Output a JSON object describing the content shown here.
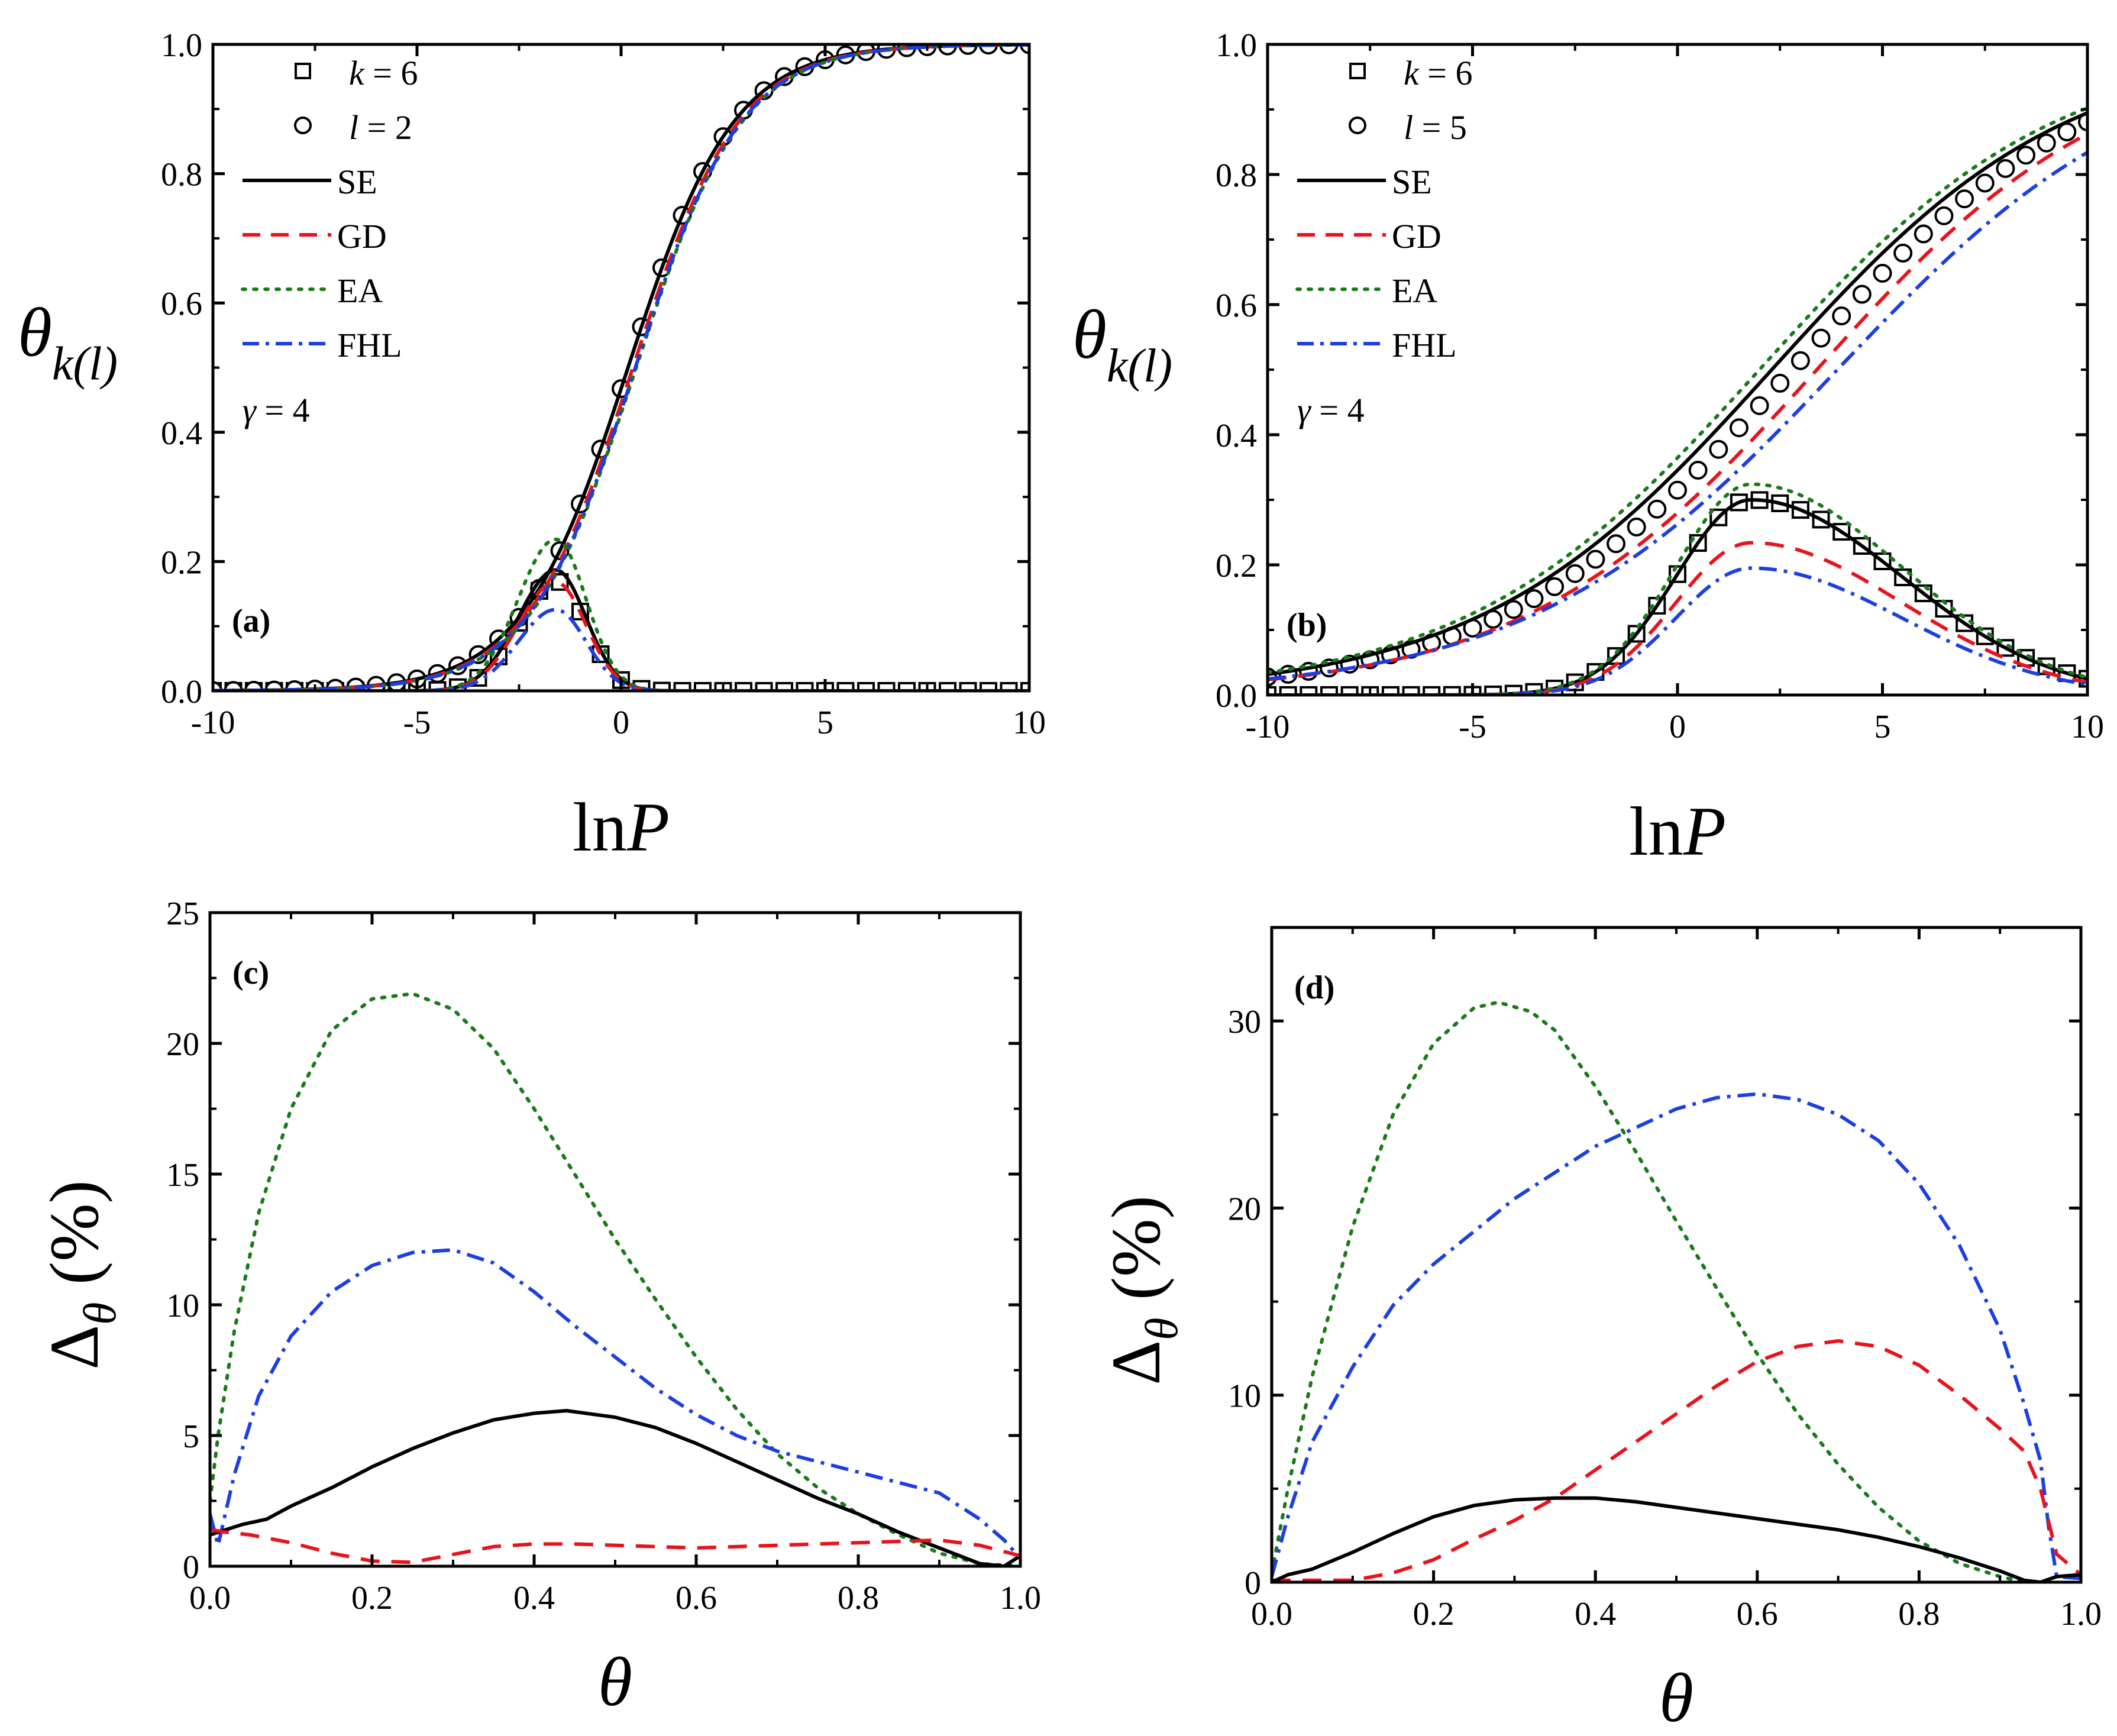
{
  "chart_data": [
    {
      "panel": "(a)",
      "type": "line",
      "xlabel_parts": [
        "ln",
        "P"
      ],
      "ylabel_parts": [
        "θ",
        "k(l)"
      ],
      "xlim": [
        -10,
        10
      ],
      "ylim": [
        0.0,
        1.0
      ],
      "xticks": [
        -10,
        -5,
        0,
        5,
        10
      ],
      "xtick_labels": [
        "-10",
        "-5",
        "0",
        "5",
        "10"
      ],
      "yticks": [
        0.0,
        0.2,
        0.4,
        0.6,
        0.8,
        1.0
      ],
      "ytick_labels": [
        "0.0",
        "0.2",
        "0.4",
        "0.6",
        "0.8",
        "1.0"
      ],
      "legend": [
        {
          "style": "square",
          "var": "k",
          "rest": " = 6"
        },
        {
          "style": "circle",
          "var": "l",
          "rest": " = 2"
        },
        {
          "style": "solid-black",
          "label": "SE"
        },
        {
          "style": "dash-red",
          "label": "GD"
        },
        {
          "style": "dot-green",
          "label": "EA"
        },
        {
          "style": "dashdot-blue",
          "label": "FHL"
        }
      ],
      "annotations": {
        "gamma_var": "γ",
        "gamma_rest": " = 4",
        "panel_label": "(a)"
      },
      "mode": "adsorption",
      "params": {
        "l_center": 0.17,
        "l_width": 1.3,
        "k_center": -1.6,
        "k_peak": 0.17,
        "k_left": 1.3,
        "k_right": 1.05
      },
      "series": [
        {
          "name": "k = 6 (sim.)",
          "kind": "markers",
          "marker": "square",
          "component": "k"
        },
        {
          "name": "l = 2 (sim.)",
          "kind": "markers",
          "marker": "circle",
          "component": "l"
        },
        {
          "name": "SE",
          "kind": "line",
          "color": "#000000",
          "dash": "",
          "component": "both",
          "k_scale": 1.1,
          "l_shift": 0.0,
          "l_scale": 1.0
        },
        {
          "name": "GD",
          "kind": "line",
          "color": "#e8141c",
          "dash": "32,20",
          "component": "both",
          "k_scale": 0.99,
          "l_shift": 0.12,
          "l_scale": 1.0
        },
        {
          "name": "EA",
          "kind": "line",
          "color": "#1a7a1a",
          "dash": "5,14",
          "component": "both",
          "k_scale": 1.38,
          "l_shift": 0.2,
          "l_scale": 1.0
        },
        {
          "name": "FHL",
          "kind": "line",
          "color": "#1d3fe0",
          "dash": "30,12,6,12",
          "component": "both",
          "k_scale": 0.74,
          "l_shift": 0.18,
          "l_scale": 1.0
        }
      ]
    },
    {
      "panel": "(b)",
      "type": "line",
      "xlabel_parts": [
        "ln",
        "P"
      ],
      "ylabel_parts": [
        "θ",
        "k(l)"
      ],
      "xlim": [
        -10,
        10
      ],
      "ylim": [
        0.0,
        1.0
      ],
      "xticks": [
        -10,
        -5,
        0,
        5,
        10
      ],
      "xtick_labels": [
        "-10",
        "-5",
        "0",
        "5",
        "10"
      ],
      "yticks": [
        0.0,
        0.2,
        0.4,
        0.6,
        0.8,
        1.0
      ],
      "ytick_labels": [
        "0.0",
        "0.2",
        "0.4",
        "0.6",
        "0.8",
        "1.0"
      ],
      "legend": [
        {
          "style": "square",
          "var": "k",
          "rest": " = 6"
        },
        {
          "style": "circle",
          "var": "l",
          "rest": " = 5"
        },
        {
          "style": "solid-black",
          "label": "SE"
        },
        {
          "style": "dash-red",
          "label": "GD"
        },
        {
          "style": "dot-green",
          "label": "EA"
        },
        {
          "style": "dashdot-blue",
          "label": "FHL"
        }
      ],
      "annotations": {
        "gamma_var": "γ",
        "gamma_rest": " = 4",
        "panel_label": "(b)"
      },
      "mode": "adsorption",
      "params": {
        "l_center": 2.8,
        "l_width": 3.6,
        "k_center": 1.8,
        "k_peak": 0.3,
        "k_left": 2.6,
        "k_right": 5.2
      },
      "series": [
        {
          "name": "k = 6 (sim.)",
          "kind": "markers",
          "marker": "square",
          "component": "k"
        },
        {
          "name": "l = 5 (sim.)",
          "kind": "markers",
          "marker": "circle",
          "component": "l"
        },
        {
          "name": "SE",
          "kind": "line",
          "color": "#000000",
          "dash": "",
          "component": "both",
          "k_scale": 1.0,
          "l_shift": -0.5,
          "l_scale": 1.0
        },
        {
          "name": "GD",
          "kind": "line",
          "color": "#e8141c",
          "dash": "32,20",
          "component": "both",
          "k_scale": 0.78,
          "l_shift": 0.6,
          "l_scale": 1.0
        },
        {
          "name": "EA",
          "kind": "line",
          "color": "#1a7a1a",
          "dash": "5,14",
          "component": "both",
          "k_scale": 1.08,
          "l_shift": -0.8,
          "l_scale": 1.0
        },
        {
          "name": "FHL",
          "kind": "line",
          "color": "#1d3fe0",
          "dash": "30,12,6,12",
          "component": "both",
          "k_scale": 0.65,
          "l_shift": 1.1,
          "l_scale": 1.05
        }
      ]
    },
    {
      "panel": "(c)",
      "type": "line",
      "xlabel_parts": [
        "θ",
        ""
      ],
      "ylabel_parts": [
        "Δ",
        "θ",
        " (%)"
      ],
      "xlim": [
        0.0,
        1.0
      ],
      "ylim": [
        0,
        25
      ],
      "xticks": [
        0.0,
        0.2,
        0.4,
        0.6,
        0.8,
        1.0
      ],
      "xtick_labels": [
        "0.0",
        "0.2",
        "0.4",
        "0.6",
        "0.8",
        "1.0"
      ],
      "yticks": [
        0,
        5,
        10,
        15,
        20,
        25
      ],
      "ytick_labels": [
        "0",
        "5",
        "10",
        "15",
        "20",
        "25"
      ],
      "annotations": {
        "panel_label": "(c)"
      },
      "mode": "error",
      "series": [
        {
          "name": "EA",
          "color": "#1a7a1a",
          "dash": "5,14",
          "x": [
            0.0,
            0.01,
            0.03,
            0.06,
            0.1,
            0.15,
            0.2,
            0.25,
            0.3,
            0.35,
            0.4,
            0.45,
            0.5,
            0.55,
            0.6,
            0.65,
            0.7,
            0.75,
            0.8,
            0.85,
            0.9,
            0.95,
            1.0
          ],
          "y": [
            2.5,
            5.0,
            9.0,
            13.5,
            17.5,
            20.5,
            21.7,
            21.9,
            21.3,
            19.8,
            17.5,
            15.0,
            12.5,
            10.2,
            8.0,
            6.0,
            4.3,
            3.0,
            2.0,
            1.2,
            0.5,
            0.1,
            0.0
          ]
        },
        {
          "name": "FHL",
          "color": "#1d3fe0",
          "dash": "30,12,6,12",
          "x": [
            0.0,
            0.01,
            0.03,
            0.06,
            0.1,
            0.15,
            0.2,
            0.25,
            0.3,
            0.35,
            0.4,
            0.45,
            0.5,
            0.55,
            0.6,
            0.65,
            0.7,
            0.75,
            0.8,
            0.85,
            0.9,
            0.95,
            0.98,
            1.0
          ],
          "y": [
            2.0,
            0.8,
            3.5,
            6.5,
            8.8,
            10.5,
            11.5,
            12.0,
            12.1,
            11.6,
            10.5,
            9.2,
            8.0,
            6.8,
            5.8,
            5.0,
            4.4,
            4.0,
            3.6,
            3.2,
            2.8,
            1.8,
            1.0,
            0.3
          ]
        },
        {
          "name": "SE",
          "color": "#000000",
          "dash": "",
          "x": [
            0.0,
            0.02,
            0.04,
            0.07,
            0.1,
            0.15,
            0.2,
            0.25,
            0.3,
            0.35,
            0.4,
            0.44,
            0.5,
            0.55,
            0.6,
            0.65,
            0.7,
            0.75,
            0.8,
            0.85,
            0.9,
            0.95,
            0.98,
            1.0
          ],
          "y": [
            1.2,
            1.4,
            1.6,
            1.8,
            2.3,
            3.0,
            3.8,
            4.5,
            5.1,
            5.6,
            5.85,
            5.95,
            5.7,
            5.3,
            4.7,
            4.0,
            3.3,
            2.6,
            2.0,
            1.3,
            0.7,
            0.1,
            0.0,
            0.4
          ]
        },
        {
          "name": "GD",
          "color": "#e8141c",
          "dash": "32,20",
          "x": [
            0.0,
            0.02,
            0.05,
            0.1,
            0.15,
            0.2,
            0.25,
            0.3,
            0.35,
            0.4,
            0.45,
            0.5,
            0.6,
            0.7,
            0.8,
            0.9,
            0.95,
            1.0
          ],
          "y": [
            1.4,
            1.3,
            1.2,
            0.9,
            0.5,
            0.2,
            0.15,
            0.45,
            0.75,
            0.85,
            0.85,
            0.8,
            0.7,
            0.8,
            0.9,
            1.0,
            0.8,
            0.4
          ]
        }
      ]
    },
    {
      "panel": "(d)",
      "type": "line",
      "xlabel_parts": [
        "θ",
        ""
      ],
      "ylabel_parts": [
        "Δ",
        "θ",
        " (%)"
      ],
      "xlim": [
        0.0,
        1.0
      ],
      "ylim": [
        0,
        35
      ],
      "xticks": [
        0.0,
        0.2,
        0.4,
        0.6,
        0.8,
        1.0
      ],
      "xtick_labels": [
        "0.0",
        "0.2",
        "0.4",
        "0.6",
        "0.8",
        "1.0"
      ],
      "yticks": [
        0,
        10,
        20,
        30
      ],
      "ytick_labels": [
        "0",
        "10",
        "20",
        "30"
      ],
      "annotations": {
        "panel_label": "(d)"
      },
      "mode": "error",
      "series": [
        {
          "name": "EA",
          "color": "#1a7a1a",
          "dash": "5,14",
          "x": [
            0.0,
            0.02,
            0.05,
            0.1,
            0.15,
            0.2,
            0.25,
            0.28,
            0.32,
            0.35,
            0.4,
            0.45,
            0.5,
            0.55,
            0.6,
            0.65,
            0.7,
            0.75,
            0.8,
            0.85,
            0.9,
            0.93
          ],
          "y": [
            0.5,
            5.0,
            11.0,
            19.0,
            25.0,
            28.8,
            30.7,
            31.0,
            30.5,
            29.5,
            26.5,
            23.0,
            19.3,
            15.7,
            12.2,
            9.0,
            6.3,
            4.0,
            2.2,
            1.0,
            0.3,
            0.0
          ]
        },
        {
          "name": "FHL",
          "color": "#1d3fe0",
          "dash": "30,12,6,12",
          "x": [
            0.0,
            0.02,
            0.05,
            0.1,
            0.15,
            0.2,
            0.3,
            0.4,
            0.5,
            0.55,
            0.6,
            0.65,
            0.7,
            0.75,
            0.8,
            0.85,
            0.9,
            0.93,
            0.95,
            0.96,
            0.97,
            1.0
          ],
          "y": [
            0.3,
            3.5,
            7.5,
            11.5,
            14.8,
            17.0,
            20.5,
            23.3,
            25.3,
            25.9,
            26.1,
            25.8,
            25.0,
            23.6,
            21.3,
            18.0,
            13.5,
            9.5,
            6.5,
            3.0,
            0.3,
            0.2
          ]
        },
        {
          "name": "GD",
          "color": "#e8141c",
          "dash": "32,20",
          "x": [
            0.0,
            0.05,
            0.1,
            0.15,
            0.2,
            0.25,
            0.3,
            0.35,
            0.4,
            0.45,
            0.5,
            0.55,
            0.6,
            0.65,
            0.7,
            0.75,
            0.8,
            0.85,
            0.9,
            0.93,
            0.95,
            0.97,
            1.0
          ],
          "y": [
            0.1,
            0.1,
            0.1,
            0.5,
            1.2,
            2.3,
            3.3,
            4.5,
            6.0,
            7.5,
            9.0,
            10.5,
            11.8,
            12.6,
            12.9,
            12.6,
            11.6,
            10.0,
            8.2,
            7.0,
            5.0,
            1.5,
            0.4
          ]
        },
        {
          "name": "SE",
          "color": "#000000",
          "dash": "",
          "x": [
            0.0,
            0.02,
            0.05,
            0.1,
            0.15,
            0.2,
            0.25,
            0.3,
            0.35,
            0.4,
            0.45,
            0.5,
            0.55,
            0.6,
            0.65,
            0.7,
            0.75,
            0.8,
            0.85,
            0.9,
            0.93,
            0.95,
            0.97,
            1.0
          ],
          "y": [
            0.0,
            0.4,
            0.7,
            1.6,
            2.6,
            3.5,
            4.1,
            4.4,
            4.5,
            4.5,
            4.3,
            4.0,
            3.7,
            3.4,
            3.1,
            2.8,
            2.4,
            1.9,
            1.3,
            0.6,
            0.1,
            0.0,
            0.3,
            0.4
          ]
        }
      ]
    }
  ]
}
